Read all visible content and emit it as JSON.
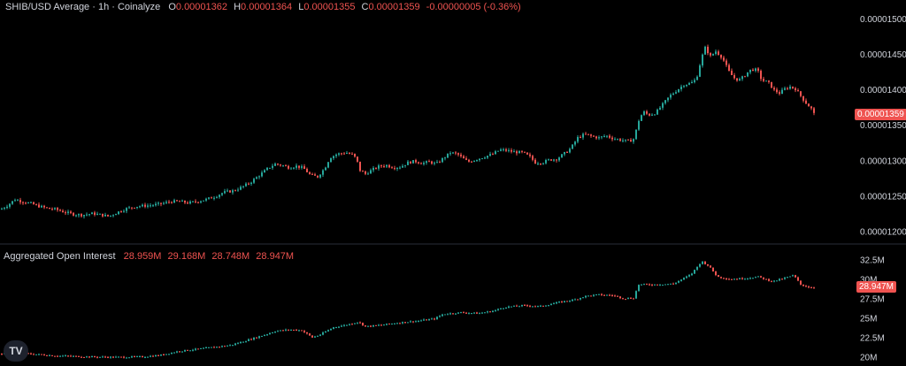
{
  "price_legend": {
    "title": "SHIB/USD Average · 1h · Coinalyze",
    "o_key": "O",
    "o": "0.00001362",
    "h_key": "H",
    "h": "0.00001364",
    "l_key": "L",
    "l": "0.00001355",
    "c_key": "C",
    "c": "0.00001359",
    "change": "-0.00000005 (-0.36%)"
  },
  "oi_legend": {
    "title": "Aggregated Open Interest",
    "v1": "28.959M",
    "v2": "29.168M",
    "v3": "28.748M",
    "v4": "28.947M"
  },
  "price_last": "0.00001359",
  "oi_last": "28.947M",
  "logo_text": "TV",
  "colors": {
    "up": "#26a69a",
    "down": "#ef5350",
    "bg": "#000000",
    "separator": "#2a2e39"
  },
  "chart_data": [
    {
      "type": "candlestick",
      "title": "SHIB/USD Average · 1h · Coinalyze",
      "y_ticks": [
        "0.00001500",
        "0.00001450",
        "0.00001400",
        "0.00001350",
        "0.00001300",
        "0.00001250",
        "0.00001200"
      ],
      "y_tick_values": [
        1500,
        1450,
        1400,
        1350,
        1300,
        1250,
        1200
      ],
      "y_unit_note": "values in 1e-8 USD",
      "ylim": [
        1193,
        1515
      ],
      "last_value": 1359,
      "path": [
        [
          0,
          1232
        ],
        [
          8,
          1238
        ],
        [
          16,
          1246
        ],
        [
          24,
          1243
        ],
        [
          34,
          1240
        ],
        [
          44,
          1236
        ],
        [
          54,
          1233
        ],
        [
          62,
          1232
        ],
        [
          72,
          1228
        ],
        [
          82,
          1225
        ],
        [
          92,
          1224
        ],
        [
          104,
          1226
        ],
        [
          114,
          1224
        ],
        [
          122,
          1222
        ],
        [
          132,
          1228
        ],
        [
          142,
          1233
        ],
        [
          152,
          1236
        ],
        [
          162,
          1237
        ],
        [
          172,
          1238
        ],
        [
          182,
          1240
        ],
        [
          192,
          1243
        ],
        [
          202,
          1243
        ],
        [
          212,
          1241
        ],
        [
          222,
          1243
        ],
        [
          232,
          1246
        ],
        [
          242,
          1250
        ],
        [
          252,
          1256
        ],
        [
          262,
          1258
        ],
        [
          272,
          1263
        ],
        [
          282,
          1270
        ],
        [
          292,
          1280
        ],
        [
          302,
          1290
        ],
        [
          310,
          1296
        ],
        [
          318,
          1294
        ],
        [
          326,
          1291
        ],
        [
          334,
          1293
        ],
        [
          342,
          1290
        ],
        [
          350,
          1280
        ],
        [
          358,
          1278
        ],
        [
          366,
          1290
        ],
        [
          372,
          1305
        ],
        [
          380,
          1310
        ],
        [
          390,
          1312
        ],
        [
          398,
          1309
        ],
        [
          402,
          1302
        ],
        [
          406,
          1287
        ],
        [
          412,
          1282
        ],
        [
          420,
          1288
        ],
        [
          428,
          1293
        ],
        [
          436,
          1294
        ],
        [
          444,
          1291
        ],
        [
          452,
          1292
        ],
        [
          460,
          1298
        ],
        [
          468,
          1300
        ],
        [
          476,
          1297
        ],
        [
          484,
          1299
        ],
        [
          492,
          1296
        ],
        [
          500,
          1304
        ],
        [
          508,
          1312
        ],
        [
          516,
          1310
        ],
        [
          522,
          1304
        ],
        [
          528,
          1299
        ],
        [
          536,
          1302
        ],
        [
          546,
          1306
        ],
        [
          556,
          1310
        ],
        [
          564,
          1316
        ],
        [
          572,
          1315
        ],
        [
          580,
          1313
        ],
        [
          590,
          1312
        ],
        [
          598,
          1306
        ],
        [
          604,
          1298
        ],
        [
          612,
          1298
        ],
        [
          620,
          1302
        ],
        [
          628,
          1303
        ],
        [
          636,
          1310
        ],
        [
          644,
          1318
        ],
        [
          652,
          1333
        ],
        [
          660,
          1338
        ],
        [
          668,
          1335
        ],
        [
          676,
          1333
        ],
        [
          684,
          1336
        ],
        [
          692,
          1332
        ],
        [
          700,
          1330
        ],
        [
          710,
          1328
        ],
        [
          716,
          1332
        ],
        [
          720,
          1355
        ],
        [
          726,
          1370
        ],
        [
          732,
          1365
        ],
        [
          740,
          1368
        ],
        [
          748,
          1380
        ],
        [
          756,
          1392
        ],
        [
          764,
          1400
        ],
        [
          772,
          1408
        ],
        [
          780,
          1410
        ],
        [
          786,
          1416
        ],
        [
          792,
          1446
        ],
        [
          796,
          1460
        ],
        [
          802,
          1448
        ],
        [
          808,
          1455
        ],
        [
          814,
          1448
        ],
        [
          818,
          1440
        ],
        [
          822,
          1428
        ],
        [
          828,
          1418
        ],
        [
          834,
          1414
        ],
        [
          840,
          1420
        ],
        [
          846,
          1428
        ],
        [
          852,
          1430
        ],
        [
          856,
          1426
        ],
        [
          860,
          1414
        ],
        [
          864,
          1413
        ],
        [
          868,
          1410
        ],
        [
          874,
          1400
        ],
        [
          880,
          1396
        ],
        [
          886,
          1402
        ],
        [
          892,
          1405
        ],
        [
          898,
          1402
        ],
        [
          904,
          1392
        ],
        [
          910,
          1382
        ],
        [
          916,
          1374
        ],
        [
          921,
          1362
        ]
      ]
    },
    {
      "type": "candlestick",
      "title": "Aggregated Open Interest",
      "y_ticks": [
        "32.5M",
        "30M",
        "27.5M",
        "25M",
        "22.5M",
        "20M"
      ],
      "y_tick_values": [
        32.5,
        30,
        27.5,
        25,
        22.5,
        20
      ],
      "ylim": [
        19.6,
        33.6
      ],
      "last_value": 28.947,
      "path": [
        [
          0,
          20.5
        ],
        [
          30,
          20.5
        ],
        [
          60,
          20.25
        ],
        [
          100,
          20.1
        ],
        [
          130,
          20.05
        ],
        [
          160,
          20.1
        ],
        [
          180,
          20.3
        ],
        [
          200,
          20.8
        ],
        [
          230,
          21.2
        ],
        [
          260,
          21.6
        ],
        [
          280,
          22.3
        ],
        [
          300,
          23.0
        ],
        [
          310,
          23.4
        ],
        [
          326,
          23.6
        ],
        [
          340,
          23.5
        ],
        [
          352,
          22.6
        ],
        [
          360,
          22.9
        ],
        [
          376,
          23.9
        ],
        [
          390,
          24.2
        ],
        [
          404,
          24.6
        ],
        [
          412,
          24.0
        ],
        [
          430,
          24.2
        ],
        [
          450,
          24.5
        ],
        [
          470,
          24.7
        ],
        [
          490,
          25.0
        ],
        [
          500,
          25.6
        ],
        [
          520,
          25.8
        ],
        [
          540,
          25.7
        ],
        [
          556,
          26.0
        ],
        [
          570,
          26.5
        ],
        [
          590,
          26.7
        ],
        [
          610,
          26.6
        ],
        [
          630,
          27.1
        ],
        [
          650,
          27.5
        ],
        [
          660,
          27.9
        ],
        [
          676,
          28.1
        ],
        [
          692,
          28.0
        ],
        [
          704,
          27.6
        ],
        [
          716,
          27.7
        ],
        [
          720,
          29.4
        ],
        [
          740,
          29.4
        ],
        [
          760,
          29.5
        ],
        [
          780,
          30.7
        ],
        [
          792,
          32.4
        ],
        [
          800,
          31.8
        ],
        [
          810,
          30.4
        ],
        [
          824,
          30.1
        ],
        [
          840,
          30.2
        ],
        [
          856,
          30.4
        ],
        [
          872,
          29.8
        ],
        [
          888,
          30.3
        ],
        [
          896,
          30.6
        ],
        [
          904,
          29.4
        ],
        [
          912,
          29.1
        ],
        [
          921,
          28.95
        ]
      ]
    }
  ]
}
